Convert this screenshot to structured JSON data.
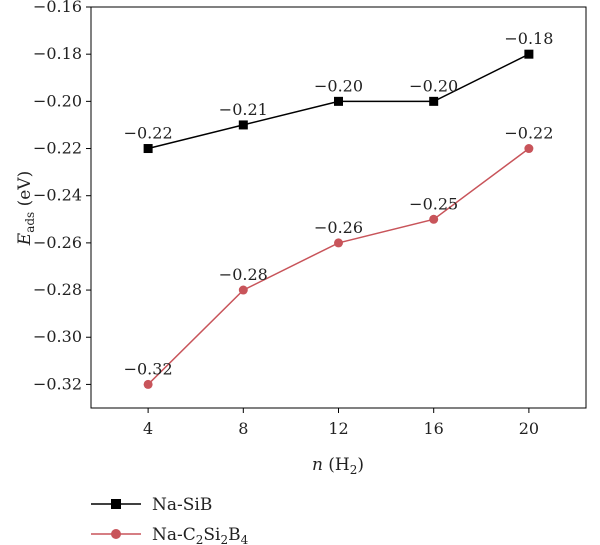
{
  "chart_data": {
    "type": "line",
    "xlabel": "n (H₂)",
    "ylabel": "E_ads (eV)",
    "x": [
      4,
      8,
      12,
      16,
      20
    ],
    "xlim": [
      1.6,
      22.4
    ],
    "ylim": [
      -0.33,
      -0.16
    ],
    "yticks": [
      -0.16,
      -0.18,
      -0.2,
      -0.22,
      -0.24,
      -0.26,
      -0.28,
      -0.3,
      -0.32
    ],
    "ytick_labels": [
      "−0.16",
      "−0.18",
      "−0.20",
      "−0.22",
      "−0.24",
      "−0.26",
      "−0.28",
      "−0.30",
      "−0.32"
    ],
    "xtick_labels": [
      "4",
      "8",
      "12",
      "16",
      "20"
    ],
    "grid": false,
    "legend_position": "below",
    "series": [
      {
        "name": "Na-SiB",
        "color": "#000000",
        "marker": "square",
        "values": [
          -0.22,
          -0.21,
          -0.2,
          -0.2,
          -0.18
        ],
        "labels": [
          "−0.22",
          "−0.21",
          "−0.20",
          "−0.20",
          "−0.18"
        ]
      },
      {
        "name": "Na-C₂Si₂B₄",
        "color": "#c8545a",
        "marker": "circle",
        "values": [
          -0.32,
          -0.28,
          -0.26,
          -0.25,
          -0.22
        ],
        "labels": [
          "−0.32",
          "−0.28",
          "−0.26",
          "−0.25",
          "−0.22"
        ]
      }
    ]
  }
}
